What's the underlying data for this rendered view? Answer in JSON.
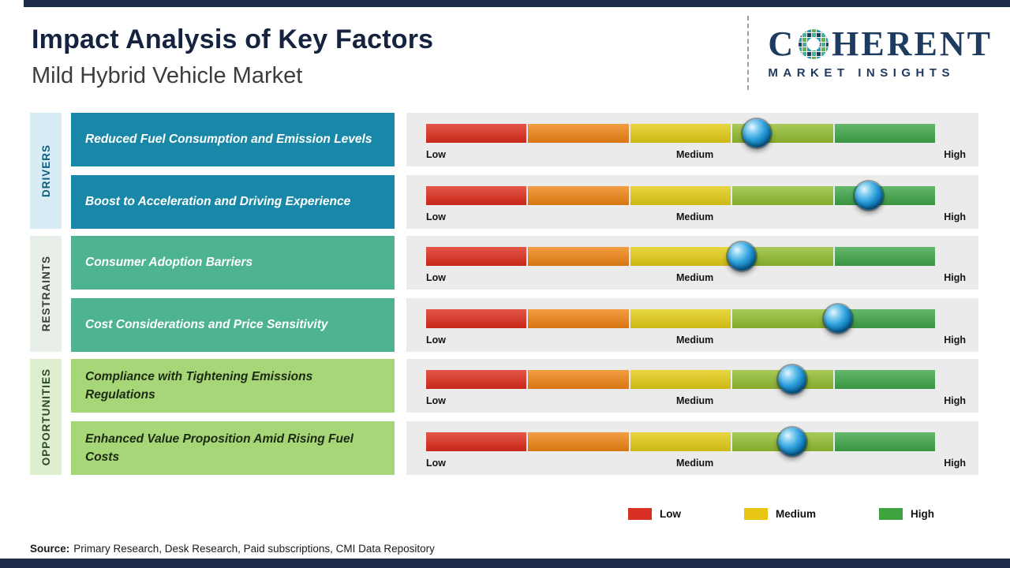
{
  "header": {
    "title": "Impact Analysis of Key Factors",
    "subtitle": "Mild Hybrid Vehicle Market"
  },
  "logo": {
    "word_start": "C",
    "word_end": "HERENT",
    "tagline": "MARKET INSIGHTS",
    "brand_color": "#1d3a5f"
  },
  "scale": {
    "low": "Low",
    "medium": "Medium",
    "high": "High"
  },
  "segments": [
    "#dd2c1c",
    "#ef8414",
    "#e3cd14",
    "#93bd30",
    "#3fa548"
  ],
  "marker_color": "#1c8fd0",
  "groups": [
    {
      "name": "DRIVERS",
      "band_bg": "#d7ecf5",
      "band_text": "#0f5d7a",
      "box_bg": "#1887a8",
      "box_text": "#ffffff",
      "factors": [
        {
          "label": "Reduced Fuel Consumption and Emission Levels",
          "impact_pct": 65
        },
        {
          "label": "Boost to Acceleration and Driving Experience",
          "impact_pct": 87
        }
      ]
    },
    {
      "name": "RESTRAINTS",
      "band_bg": "#e8efe9",
      "band_text": "#3a3a3a",
      "box_bg": "#4db391",
      "box_text": "#ffffff",
      "factors": [
        {
          "label": "Consumer Adoption Barriers",
          "impact_pct": 62
        },
        {
          "label": "Cost Considerations and Price Sensitivity",
          "impact_pct": 81
        }
      ]
    },
    {
      "name": "OPPORTUNITIES",
      "band_bg": "#ddefcd",
      "band_text": "#2c4a22",
      "box_bg": "#a6d678",
      "box_text": "#1c2a14",
      "factors": [
        {
          "label": "Compliance with Tightening Emissions Regulations",
          "impact_pct": 72
        },
        {
          "label": "Enhanced Value Proposition Amid Rising Fuel Costs",
          "impact_pct": 72
        }
      ]
    }
  ],
  "legend": {
    "items": [
      {
        "label": "Low",
        "color": "#d93025"
      },
      {
        "label": "Medium",
        "color": "#e8c714"
      },
      {
        "label": "High",
        "color": "#3fa33f"
      }
    ]
  },
  "footer": {
    "source_label": "Source:",
    "source_text": "Primary Research, Desk Research, Paid subscriptions, CMI Data Repository"
  },
  "chart_data": {
    "type": "scatter",
    "title": "Impact Analysis of Key Factors",
    "subtitle": "Mild Hybrid Vehicle Market",
    "x_axis": {
      "tick_labels": [
        "Low",
        "Medium",
        "High"
      ],
      "range_pct": [
        0,
        100
      ],
      "grid": false
    },
    "legend_entries": [
      "Low",
      "Medium",
      "High"
    ],
    "legend_position": "bottom-right",
    "series": [
      {
        "category": "Drivers",
        "factor": "Reduced Fuel Consumption and Emission Levels",
        "impact_pct": 65
      },
      {
        "category": "Drivers",
        "factor": "Boost to Acceleration and Driving Experience",
        "impact_pct": 87
      },
      {
        "category": "Restraints",
        "factor": "Consumer Adoption Barriers",
        "impact_pct": 62
      },
      {
        "category": "Restraints",
        "factor": "Cost Considerations and Price Sensitivity",
        "impact_pct": 81
      },
      {
        "category": "Opportunities",
        "factor": "Compliance with Tightening Emissions Regulations",
        "impact_pct": 72
      },
      {
        "category": "Opportunities",
        "factor": "Enhanced Value Proposition Amid Rising Fuel Costs",
        "impact_pct": 72
      }
    ]
  }
}
